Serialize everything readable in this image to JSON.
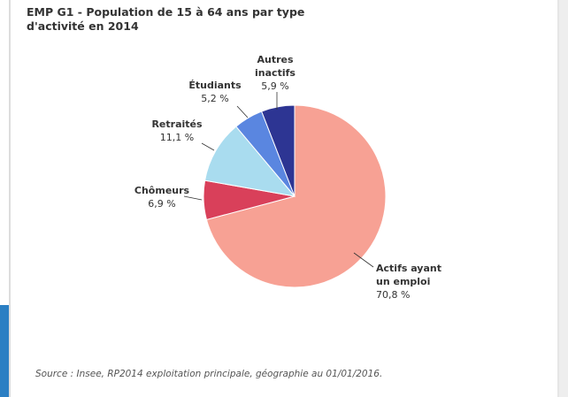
{
  "chart_data": {
    "type": "pie",
    "title": "EMP G1 - Population de 15 à 64 ans par type d'activité en 2014",
    "categories": [
      "Actifs ayant un emploi",
      "Chômeurs",
      "Retraités",
      "Étudiants",
      "Autres inactifs"
    ],
    "values": [
      70.8,
      6.9,
      11.1,
      5.2,
      5.9
    ],
    "value_labels": [
      "70,8 %",
      "6,9 %",
      "11,1 %",
      "5,2 %",
      "5,9 %"
    ],
    "colors": [
      "#f7a194",
      "#d9405a",
      "#a9dcef",
      "#5a86e0",
      "#2d3593"
    ],
    "source": "Source : Insee, RP2014 exploitation principale, géographie au 01/01/2016."
  }
}
